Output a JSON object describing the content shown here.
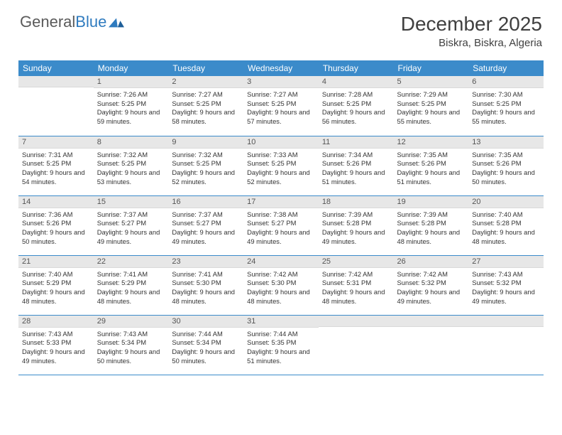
{
  "brand": {
    "part1": "General",
    "part2": "Blue"
  },
  "header": {
    "month_title": "December 2025",
    "location": "Biskra, Biskra, Algeria"
  },
  "colors": {
    "header_bg": "#3b8bca",
    "daynum_bg": "#e7e7e7",
    "text": "#333333",
    "page_bg": "#ffffff"
  },
  "day_names": [
    "Sunday",
    "Monday",
    "Tuesday",
    "Wednesday",
    "Thursday",
    "Friday",
    "Saturday"
  ],
  "weeks": [
    [
      {
        "n": "",
        "sr": "",
        "ss": "",
        "dl": ""
      },
      {
        "n": "1",
        "sr": "Sunrise: 7:26 AM",
        "ss": "Sunset: 5:25 PM",
        "dl": "Daylight: 9 hours and 59 minutes."
      },
      {
        "n": "2",
        "sr": "Sunrise: 7:27 AM",
        "ss": "Sunset: 5:25 PM",
        "dl": "Daylight: 9 hours and 58 minutes."
      },
      {
        "n": "3",
        "sr": "Sunrise: 7:27 AM",
        "ss": "Sunset: 5:25 PM",
        "dl": "Daylight: 9 hours and 57 minutes."
      },
      {
        "n": "4",
        "sr": "Sunrise: 7:28 AM",
        "ss": "Sunset: 5:25 PM",
        "dl": "Daylight: 9 hours and 56 minutes."
      },
      {
        "n": "5",
        "sr": "Sunrise: 7:29 AM",
        "ss": "Sunset: 5:25 PM",
        "dl": "Daylight: 9 hours and 55 minutes."
      },
      {
        "n": "6",
        "sr": "Sunrise: 7:30 AM",
        "ss": "Sunset: 5:25 PM",
        "dl": "Daylight: 9 hours and 55 minutes."
      }
    ],
    [
      {
        "n": "7",
        "sr": "Sunrise: 7:31 AM",
        "ss": "Sunset: 5:25 PM",
        "dl": "Daylight: 9 hours and 54 minutes."
      },
      {
        "n": "8",
        "sr": "Sunrise: 7:32 AM",
        "ss": "Sunset: 5:25 PM",
        "dl": "Daylight: 9 hours and 53 minutes."
      },
      {
        "n": "9",
        "sr": "Sunrise: 7:32 AM",
        "ss": "Sunset: 5:25 PM",
        "dl": "Daylight: 9 hours and 52 minutes."
      },
      {
        "n": "10",
        "sr": "Sunrise: 7:33 AM",
        "ss": "Sunset: 5:25 PM",
        "dl": "Daylight: 9 hours and 52 minutes."
      },
      {
        "n": "11",
        "sr": "Sunrise: 7:34 AM",
        "ss": "Sunset: 5:26 PM",
        "dl": "Daylight: 9 hours and 51 minutes."
      },
      {
        "n": "12",
        "sr": "Sunrise: 7:35 AM",
        "ss": "Sunset: 5:26 PM",
        "dl": "Daylight: 9 hours and 51 minutes."
      },
      {
        "n": "13",
        "sr": "Sunrise: 7:35 AM",
        "ss": "Sunset: 5:26 PM",
        "dl": "Daylight: 9 hours and 50 minutes."
      }
    ],
    [
      {
        "n": "14",
        "sr": "Sunrise: 7:36 AM",
        "ss": "Sunset: 5:26 PM",
        "dl": "Daylight: 9 hours and 50 minutes."
      },
      {
        "n": "15",
        "sr": "Sunrise: 7:37 AM",
        "ss": "Sunset: 5:27 PM",
        "dl": "Daylight: 9 hours and 49 minutes."
      },
      {
        "n": "16",
        "sr": "Sunrise: 7:37 AM",
        "ss": "Sunset: 5:27 PM",
        "dl": "Daylight: 9 hours and 49 minutes."
      },
      {
        "n": "17",
        "sr": "Sunrise: 7:38 AM",
        "ss": "Sunset: 5:27 PM",
        "dl": "Daylight: 9 hours and 49 minutes."
      },
      {
        "n": "18",
        "sr": "Sunrise: 7:39 AM",
        "ss": "Sunset: 5:28 PM",
        "dl": "Daylight: 9 hours and 49 minutes."
      },
      {
        "n": "19",
        "sr": "Sunrise: 7:39 AM",
        "ss": "Sunset: 5:28 PM",
        "dl": "Daylight: 9 hours and 48 minutes."
      },
      {
        "n": "20",
        "sr": "Sunrise: 7:40 AM",
        "ss": "Sunset: 5:28 PM",
        "dl": "Daylight: 9 hours and 48 minutes."
      }
    ],
    [
      {
        "n": "21",
        "sr": "Sunrise: 7:40 AM",
        "ss": "Sunset: 5:29 PM",
        "dl": "Daylight: 9 hours and 48 minutes."
      },
      {
        "n": "22",
        "sr": "Sunrise: 7:41 AM",
        "ss": "Sunset: 5:29 PM",
        "dl": "Daylight: 9 hours and 48 minutes."
      },
      {
        "n": "23",
        "sr": "Sunrise: 7:41 AM",
        "ss": "Sunset: 5:30 PM",
        "dl": "Daylight: 9 hours and 48 minutes."
      },
      {
        "n": "24",
        "sr": "Sunrise: 7:42 AM",
        "ss": "Sunset: 5:30 PM",
        "dl": "Daylight: 9 hours and 48 minutes."
      },
      {
        "n": "25",
        "sr": "Sunrise: 7:42 AM",
        "ss": "Sunset: 5:31 PM",
        "dl": "Daylight: 9 hours and 48 minutes."
      },
      {
        "n": "26",
        "sr": "Sunrise: 7:42 AM",
        "ss": "Sunset: 5:32 PM",
        "dl": "Daylight: 9 hours and 49 minutes."
      },
      {
        "n": "27",
        "sr": "Sunrise: 7:43 AM",
        "ss": "Sunset: 5:32 PM",
        "dl": "Daylight: 9 hours and 49 minutes."
      }
    ],
    [
      {
        "n": "28",
        "sr": "Sunrise: 7:43 AM",
        "ss": "Sunset: 5:33 PM",
        "dl": "Daylight: 9 hours and 49 minutes."
      },
      {
        "n": "29",
        "sr": "Sunrise: 7:43 AM",
        "ss": "Sunset: 5:34 PM",
        "dl": "Daylight: 9 hours and 50 minutes."
      },
      {
        "n": "30",
        "sr": "Sunrise: 7:44 AM",
        "ss": "Sunset: 5:34 PM",
        "dl": "Daylight: 9 hours and 50 minutes."
      },
      {
        "n": "31",
        "sr": "Sunrise: 7:44 AM",
        "ss": "Sunset: 5:35 PM",
        "dl": "Daylight: 9 hours and 51 minutes."
      },
      {
        "n": "",
        "sr": "",
        "ss": "",
        "dl": ""
      },
      {
        "n": "",
        "sr": "",
        "ss": "",
        "dl": ""
      },
      {
        "n": "",
        "sr": "",
        "ss": "",
        "dl": ""
      }
    ]
  ]
}
